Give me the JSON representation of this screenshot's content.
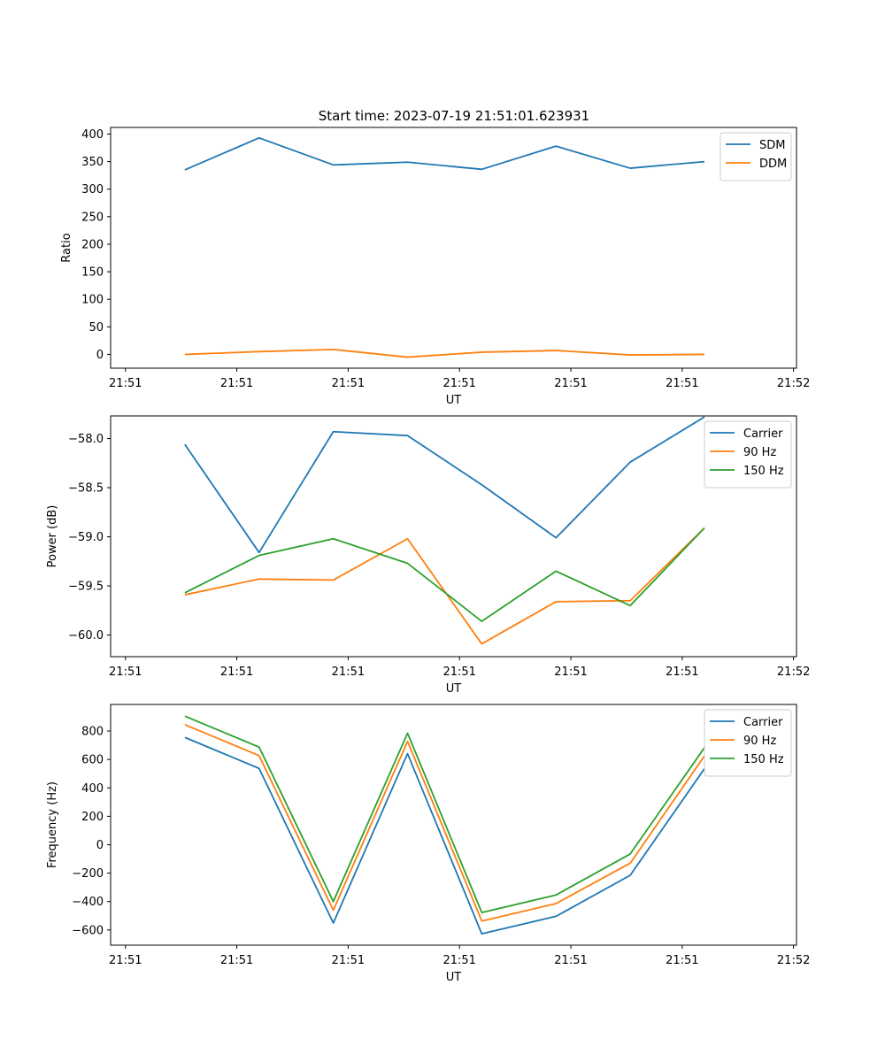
{
  "figure": {
    "title": "Start time: 2023-07-19 21:51:01.623931"
  },
  "chart_data": [
    {
      "type": "line",
      "title": "Start time: 2023-07-19 21:51:01.623931",
      "xlabel": "UT",
      "ylabel": "Ratio",
      "xlim": [
        0,
        9.24
      ],
      "ylim": [
        -25,
        412
      ],
      "x": [
        1,
        2,
        3,
        4,
        5,
        6,
        7,
        8
      ],
      "xticks": [
        0.2,
        1.7,
        3.2,
        4.7,
        6.2,
        7.7,
        9.2
      ],
      "xtick_labels": [
        "21:51",
        "21:51",
        "21:51",
        "21:51",
        "21:51",
        "21:51",
        "21:52"
      ],
      "yticks": [
        0,
        50,
        100,
        150,
        200,
        250,
        300,
        350,
        400
      ],
      "ytick_labels": [
        "0",
        "50",
        "100",
        "150",
        "200",
        "250",
        "300",
        "350",
        "400"
      ],
      "legend_position": "top-right",
      "series": [
        {
          "name": "SDM",
          "color": "#1f77b4",
          "values": [
            335,
            393,
            344,
            349,
            336,
            378,
            338,
            350
          ]
        },
        {
          "name": "DDM",
          "color": "#ff7f0e",
          "values": [
            0,
            5,
            9,
            -5,
            4,
            7,
            -1,
            0
          ]
        }
      ]
    },
    {
      "type": "line",
      "title": "",
      "xlabel": "UT",
      "ylabel": "Power (dB)",
      "xlim": [
        0,
        9.24
      ],
      "ylim": [
        -60.22,
        -57.77
      ],
      "x": [
        1,
        2,
        3,
        4,
        5,
        6,
        7,
        8
      ],
      "xticks": [
        0.2,
        1.7,
        3.2,
        4.7,
        6.2,
        7.7,
        9.2
      ],
      "xtick_labels": [
        "21:51",
        "21:51",
        "21:51",
        "21:51",
        "21:51",
        "21:51",
        "21:52"
      ],
      "yticks": [
        -60.0,
        -59.5,
        -59.0,
        -58.5,
        -58.0
      ],
      "ytick_labels": [
        "−60.0",
        "−59.5",
        "−59.0",
        "−58.5",
        "−58.0"
      ],
      "legend_position": "top-right",
      "series": [
        {
          "name": "Carrier",
          "color": "#1f77b4",
          "values": [
            -58.06,
            -59.16,
            -57.93,
            -57.97,
            -58.47,
            -59.01,
            -58.24,
            -57.78
          ]
        },
        {
          "name": "90 Hz",
          "color": "#ff7f0e",
          "values": [
            -59.59,
            -59.43,
            -59.44,
            -59.02,
            -60.09,
            -59.66,
            -59.65,
            -58.91
          ]
        },
        {
          "name": "150 Hz",
          "color": "#2ca02c",
          "values": [
            -59.57,
            -59.19,
            -59.02,
            -59.27,
            -59.86,
            -59.35,
            -59.7,
            -58.91
          ]
        }
      ]
    },
    {
      "type": "line",
      "title": "",
      "xlabel": "UT",
      "ylabel": "Frequency (Hz)",
      "xlim": [
        0,
        9.24
      ],
      "ylim": [
        -707,
        987
      ],
      "x": [
        1,
        2,
        3,
        4,
        5,
        6,
        7,
        8
      ],
      "xticks": [
        0.2,
        1.7,
        3.2,
        4.7,
        6.2,
        7.7,
        9.2
      ],
      "xtick_labels": [
        "21:51",
        "21:51",
        "21:51",
        "21:51",
        "21:51",
        "21:51",
        "21:52"
      ],
      "yticks": [
        -600,
        -400,
        -200,
        0,
        200,
        400,
        600,
        800
      ],
      "ytick_labels": [
        "−600",
        "−400",
        "−200",
        "0",
        "200",
        "400",
        "600",
        "800"
      ],
      "legend_position": "top-right",
      "series": [
        {
          "name": "Carrier",
          "color": "#1f77b4",
          "values": [
            755,
            537,
            -551,
            641,
            -627,
            -504,
            -215,
            535
          ]
        },
        {
          "name": "90 Hz",
          "color": "#ff7f0e",
          "values": [
            845,
            627,
            -461,
            727,
            -537,
            -414,
            -130,
            625
          ]
        },
        {
          "name": "150 Hz",
          "color": "#2ca02c",
          "values": [
            905,
            687,
            -400,
            785,
            -477,
            -354,
            -65,
            683
          ]
        }
      ]
    }
  ]
}
